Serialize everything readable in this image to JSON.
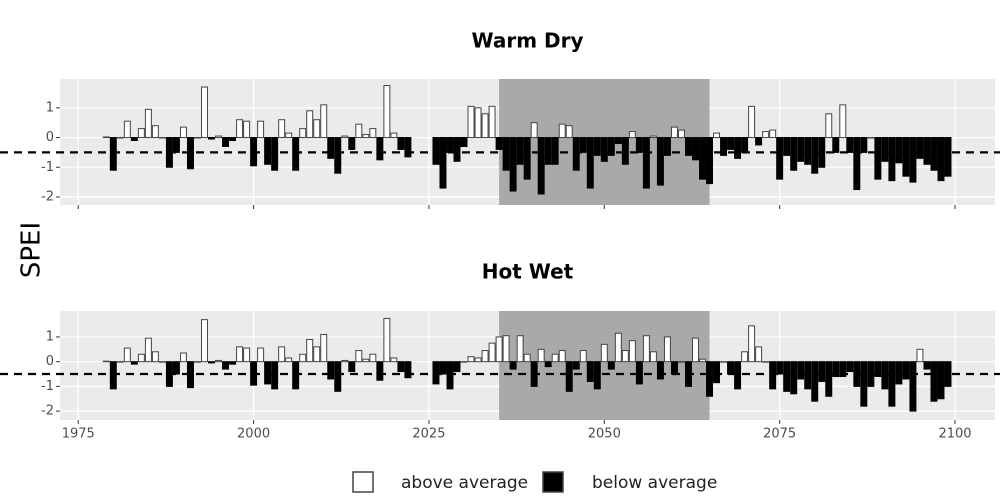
{
  "chart_data": [
    {
      "type": "bar",
      "title": "Warm Dry",
      "y_label": "SPEI",
      "x": [
        1979,
        1980,
        1981,
        1982,
        1983,
        1984,
        1985,
        1986,
        1987,
        1988,
        1989,
        1990,
        1991,
        1992,
        1993,
        1994,
        1995,
        1996,
        1997,
        1998,
        1999,
        2000,
        2001,
        2002,
        2003,
        2004,
        2005,
        2006,
        2007,
        2008,
        2009,
        2010,
        2011,
        2012,
        2013,
        2014,
        2015,
        2016,
        2017,
        2018,
        2019,
        2020,
        2021,
        2022,
        2026,
        2027,
        2028,
        2029,
        2030,
        2031,
        2032,
        2033,
        2034,
        2035,
        2036,
        2037,
        2038,
        2039,
        2040,
        2041,
        2042,
        2043,
        2044,
        2045,
        2046,
        2047,
        2048,
        2049,
        2050,
        2051,
        2052,
        2053,
        2054,
        2055,
        2056,
        2057,
        2058,
        2059,
        2060,
        2061,
        2062,
        2063,
        2064,
        2065,
        2066,
        2067,
        2068,
        2069,
        2070,
        2071,
        2072,
        2073,
        2074,
        2075,
        2076,
        2077,
        2078,
        2079,
        2080,
        2081,
        2082,
        2083,
        2084,
        2085,
        2086,
        2087,
        2088,
        2089,
        2090,
        2091,
        2092,
        2093,
        2094,
        2095,
        2096,
        2097,
        2098,
        2099
      ],
      "values": [
        0.02,
        -1.1,
        0,
        0.55,
        -0.1,
        0.3,
        0.95,
        0.4,
        0,
        -1.0,
        -0.5,
        0.35,
        -1.05,
        0,
        1.7,
        -0.05,
        0.05,
        -0.3,
        -0.1,
        0.6,
        0.55,
        -0.95,
        0.55,
        -0.9,
        -1.1,
        0.6,
        0.15,
        -1.1,
        0.3,
        0.9,
        0.6,
        1.1,
        -0.7,
        -1.2,
        0.05,
        -0.4,
        0.45,
        0.1,
        0.3,
        -0.75,
        1.75,
        0.15,
        -0.4,
        -0.65,
        -0.9,
        -1.7,
        -0.5,
        -0.8,
        -0.3,
        1.05,
        1.0,
        0.8,
        1.05,
        -0.4,
        -1.1,
        -1.8,
        -0.9,
        -1.4,
        0.5,
        -1.9,
        -0.9,
        -0.9,
        0.45,
        0.4,
        -1.1,
        -0.5,
        -1.7,
        -0.6,
        -0.8,
        -0.6,
        -0.2,
        -0.9,
        0.2,
        -0.5,
        -1.7,
        0.05,
        -1.6,
        -0.6,
        0.35,
        0.25,
        -0.6,
        -0.75,
        -1.4,
        -1.55,
        0.15,
        -0.6,
        -0.4,
        -0.7,
        -0.5,
        1.05,
        -0.25,
        0.2,
        0.25,
        -1.4,
        -0.6,
        -1.1,
        -0.8,
        -0.9,
        -1.2,
        -1.0,
        0.8,
        -0.5,
        1.1,
        -0.5,
        -1.75,
        -0.5,
        0,
        -1.4,
        -0.8,
        -1.45,
        -0.85,
        -1.3,
        -1.5,
        -0.7,
        -0.9,
        -1.1,
        -1.45,
        -1.3
      ],
      "xlim": [
        1972.4,
        2105.7
      ],
      "ylim": [
        -2.27,
        1.97
      ],
      "yticks": [
        -2,
        -1,
        0,
        1
      ],
      "xticks": [
        1975,
        2000,
        2025,
        2050,
        2075,
        2100
      ],
      "x_tick_labels": false,
      "highlight": [
        2035,
        2065
      ],
      "highlight_color": "#a9a9a9",
      "hline": -0.5,
      "above_color": "#ffffff",
      "below_color": "#000000"
    },
    {
      "type": "bar",
      "title": "Hot Wet",
      "x": [
        1979,
        1980,
        1981,
        1982,
        1983,
        1984,
        1985,
        1986,
        1987,
        1988,
        1989,
        1990,
        1991,
        1992,
        1993,
        1994,
        1995,
        1996,
        1997,
        1998,
        1999,
        2000,
        2001,
        2002,
        2003,
        2004,
        2005,
        2006,
        2007,
        2008,
        2009,
        2010,
        2011,
        2012,
        2013,
        2014,
        2015,
        2016,
        2017,
        2018,
        2019,
        2020,
        2021,
        2022,
        2026,
        2027,
        2028,
        2029,
        2030,
        2031,
        2032,
        2033,
        2034,
        2035,
        2036,
        2037,
        2038,
        2039,
        2040,
        2041,
        2042,
        2043,
        2044,
        2045,
        2046,
        2047,
        2048,
        2049,
        2050,
        2051,
        2052,
        2053,
        2054,
        2055,
        2056,
        2057,
        2058,
        2059,
        2060,
        2061,
        2062,
        2063,
        2064,
        2065,
        2066,
        2067,
        2068,
        2069,
        2070,
        2071,
        2072,
        2073,
        2074,
        2075,
        2076,
        2077,
        2078,
        2079,
        2080,
        2081,
        2082,
        2083,
        2084,
        2085,
        2086,
        2087,
        2088,
        2089,
        2090,
        2091,
        2092,
        2093,
        2094,
        2095,
        2096,
        2097,
        2098,
        2099
      ],
      "values": [
        0.02,
        -1.1,
        0,
        0.55,
        -0.1,
        0.3,
        0.95,
        0.4,
        0,
        -1.0,
        -0.5,
        0.35,
        -1.05,
        0,
        1.7,
        -0.05,
        0.05,
        -0.3,
        -0.1,
        0.6,
        0.55,
        -0.95,
        0.55,
        -0.9,
        -1.1,
        0.6,
        0.15,
        -1.1,
        0.3,
        0.9,
        0.6,
        1.1,
        -0.7,
        -1.2,
        0.05,
        -0.4,
        0.45,
        0.1,
        0.3,
        -0.75,
        1.75,
        0.15,
        -0.4,
        -0.65,
        -0.9,
        -0.5,
        -1.1,
        -0.4,
        0,
        0.2,
        0.15,
        0.45,
        0.75,
        1.0,
        1.05,
        -0.3,
        1.05,
        0.3,
        -1.0,
        0.5,
        -0.2,
        0.3,
        0.45,
        -1.2,
        -0.3,
        0.45,
        -0.8,
        -1.1,
        0.7,
        -0.3,
        1.15,
        0.45,
        0.85,
        -0.9,
        1.05,
        0.4,
        -0.7,
        1.0,
        -0.5,
        0,
        -1.0,
        0.95,
        0.1,
        -1.4,
        -0.85,
        0,
        -0.5,
        -1.1,
        0.4,
        1.45,
        0.6,
        0,
        -1.1,
        -0.5,
        -1.2,
        -1.3,
        -0.7,
        -1.1,
        -1.6,
        -0.8,
        -1.4,
        -0.6,
        -0.6,
        -0.4,
        -1.0,
        -1.8,
        -1.0,
        -0.6,
        -1.1,
        -1.8,
        -0.9,
        -0.7,
        -2.0,
        0.5,
        -0.3,
        -1.6,
        -1.5,
        -1.0
      ],
      "xlim": [
        1972.4,
        2105.7
      ],
      "ylim": [
        -2.36,
        2.05
      ],
      "yticks": [
        -2,
        -1,
        0,
        1
      ],
      "xticks": [
        1975,
        2000,
        2025,
        2050,
        2075,
        2100
      ],
      "x_tick_labels": true,
      "highlight": [
        2035,
        2065
      ],
      "highlight_color": "#a9a9a9",
      "hline": -0.5,
      "above_color": "#ffffff",
      "below_color": "#000000",
      "legend": [
        {
          "name": "above average",
          "color": "#ffffff"
        },
        {
          "name": "below average",
          "color": "#000000"
        }
      ]
    }
  ]
}
